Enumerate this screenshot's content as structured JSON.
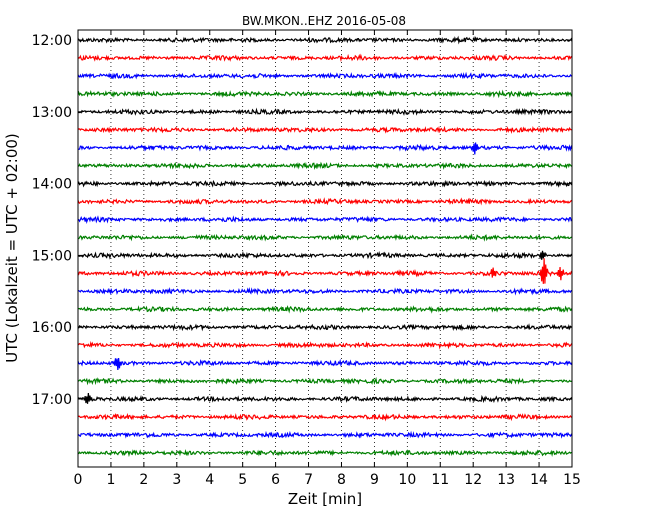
{
  "chart_data": {
    "type": "line",
    "title": "BW.MKON..EHZ 2016-05-08",
    "xlabel": "Zeit  [min]",
    "ylabel": "UTC (Lokalzeit = UTC + 02:00)",
    "xlim": [
      0,
      15
    ],
    "x_ticks": [
      "0",
      "1",
      "2",
      "3",
      "4",
      "5",
      "6",
      "7",
      "8",
      "9",
      "10",
      "11",
      "12",
      "13",
      "14",
      "15"
    ],
    "y_tick_labels": [
      "12:00",
      "13:00",
      "14:00",
      "15:00",
      "16:00",
      "17:00"
    ],
    "grid": "vertical dotted",
    "trace_interval_minutes": 15,
    "trace_colors": [
      "#000000",
      "#ff0000",
      "#0000ff",
      "#008000"
    ],
    "series": [
      {
        "start": "12:00",
        "color": "#000000"
      },
      {
        "start": "12:15",
        "color": "#ff0000"
      },
      {
        "start": "12:30",
        "color": "#0000ff"
      },
      {
        "start": "12:45",
        "color": "#008000"
      },
      {
        "start": "13:00",
        "color": "#000000"
      },
      {
        "start": "13:15",
        "color": "#ff0000"
      },
      {
        "start": "13:30",
        "color": "#0000ff",
        "events": [
          {
            "x": 12.05,
            "amplitude": 0.45
          }
        ]
      },
      {
        "start": "13:45",
        "color": "#008000"
      },
      {
        "start": "14:00",
        "color": "#000000"
      },
      {
        "start": "14:15",
        "color": "#ff0000"
      },
      {
        "start": "14:30",
        "color": "#0000ff"
      },
      {
        "start": "14:45",
        "color": "#008000"
      },
      {
        "start": "15:00",
        "color": "#000000",
        "events": [
          {
            "x": 14.1,
            "amplitude": 0.3
          }
        ]
      },
      {
        "start": "15:15",
        "color": "#ff0000",
        "events": [
          {
            "x": 12.6,
            "amplitude": 0.3
          },
          {
            "x": 14.15,
            "amplitude": 1.0
          },
          {
            "x": 14.65,
            "amplitude": 0.45
          }
        ]
      },
      {
        "start": "15:30",
        "color": "#0000ff"
      },
      {
        "start": "15:45",
        "color": "#008000"
      },
      {
        "start": "16:00",
        "color": "#000000"
      },
      {
        "start": "16:15",
        "color": "#ff0000"
      },
      {
        "start": "16:30",
        "color": "#0000ff",
        "events": [
          {
            "x": 1.2,
            "amplitude": 0.55
          }
        ]
      },
      {
        "start": "16:45",
        "color": "#008000"
      },
      {
        "start": "17:00",
        "color": "#000000",
        "events": [
          {
            "x": 0.3,
            "amplitude": 0.35
          }
        ]
      },
      {
        "start": "17:15",
        "color": "#ff0000"
      },
      {
        "start": "17:30",
        "color": "#0000ff"
      },
      {
        "start": "17:45",
        "color": "#008000"
      }
    ]
  }
}
